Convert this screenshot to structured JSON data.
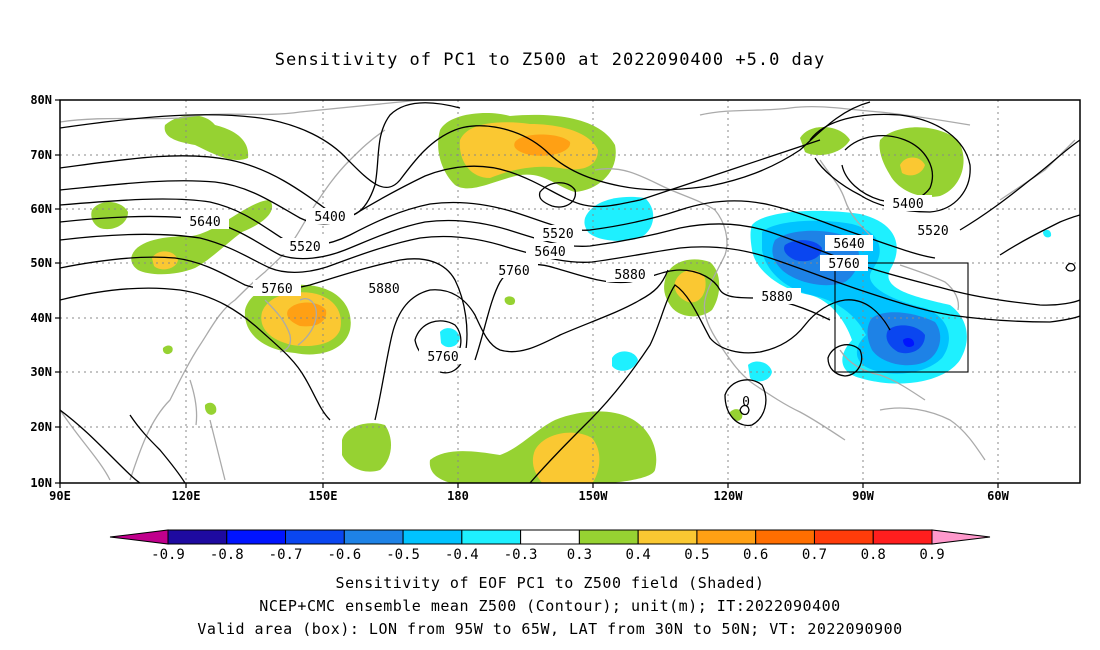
{
  "title": "Sensitivity of PC1 to Z500 at 2022090400 +5.0 day",
  "lat_ticks": [
    "80N",
    "70N",
    "60N",
    "50N",
    "40N",
    "30N",
    "20N",
    "10N"
  ],
  "lon_ticks": [
    "90E",
    "120E",
    "150E",
    "180",
    "150W",
    "120W",
    "90W",
    "60W"
  ],
  "contour_labels": [
    "5400",
    "5640",
    "5520",
    "5760",
    "5880",
    "5760",
    "5520",
    "5640",
    "5760",
    "5880",
    "5640",
    "5760",
    "5880",
    "5400",
    "5520",
    "0"
  ],
  "colorbar": {
    "labels": [
      "-0.9",
      "-0.8",
      "-0.7",
      "-0.6",
      "-0.5",
      "-0.4",
      "-0.3",
      "0.3",
      "0.4",
      "0.5",
      "0.6",
      "0.7",
      "0.8",
      "0.9"
    ],
    "colors": [
      "#c0008c",
      "#1e0aa0",
      "#0014ff",
      "#0a46f0",
      "#1e82e6",
      "#00c3ff",
      "#1ef0ff",
      "#ffffff",
      "#96d232",
      "#fac832",
      "#ffa014",
      "#ff6e00",
      "#ff3c0a",
      "#ff1e1e",
      "#ff99cc"
    ]
  },
  "captions": [
    "Sensitivity of EOF PC1 to Z500 field (Shaded)",
    "NCEP+CMC ensemble mean Z500 (Contour); unit(m); IT:2022090400",
    "Valid area (box): LON from 95W to 65W, LAT from 30N to 50N; VT: 2022090900"
  ]
}
